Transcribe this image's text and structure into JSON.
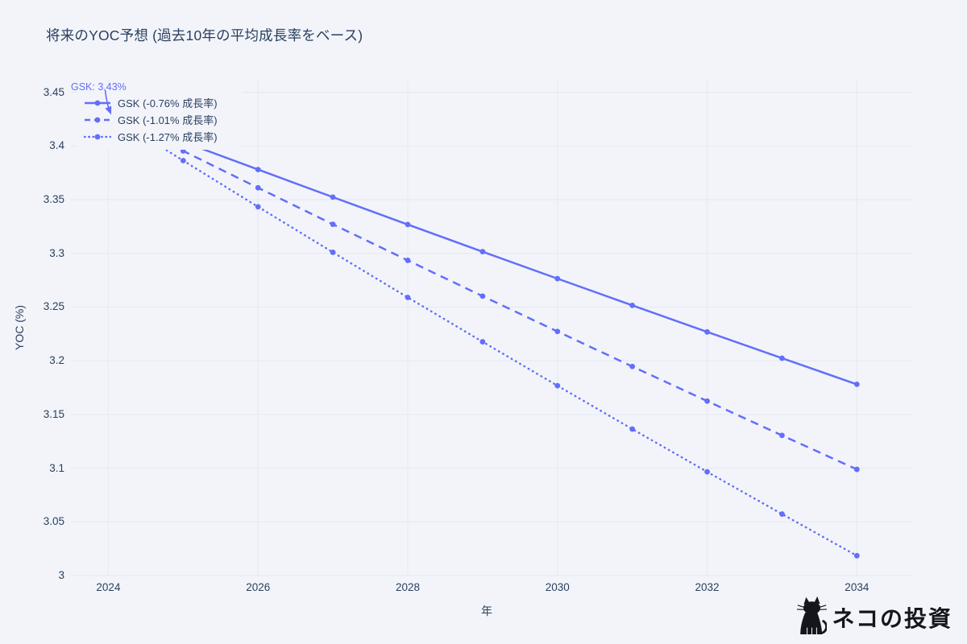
{
  "chart": {
    "title": "将来のYOC予想 (過去10年の平均成長率をベース)",
    "xlabel": "年",
    "ylabel": "YOC (%)",
    "annotation": {
      "text": "GSK: 3.43%"
    }
  },
  "watermark": {
    "text": "ネコの投資"
  },
  "colors": {
    "accent": "#636efa",
    "background": "#f2f4f9",
    "grid": "#e7ebf5",
    "text": "#2a3f5f",
    "watermark": "#15151d"
  },
  "chart_data": {
    "type": "line",
    "title": "将来のYOC予想 (過去10年の平均成長率をベース)",
    "xlabel": "年",
    "ylabel": "YOC (%)",
    "x": [
      2024,
      2025,
      2026,
      2027,
      2028,
      2029,
      2030,
      2031,
      2032,
      2033,
      2034
    ],
    "series": [
      {
        "name": "GSK (-0.76% 成長率)",
        "dash": "solid",
        "values": [
          3.43,
          3.4039,
          3.3781,
          3.3524,
          3.3269,
          3.3016,
          3.2765,
          3.2516,
          3.2269,
          3.2024,
          3.1781
        ]
      },
      {
        "name": "GSK (-1.01% 成長率)",
        "dash": "dash",
        "values": [
          3.43,
          3.3954,
          3.3611,
          3.3271,
          3.2935,
          3.2602,
          3.2273,
          3.1947,
          3.1625,
          3.1305,
          3.0989
        ]
      },
      {
        "name": "GSK (-1.27% 成長率)",
        "dash": "dot",
        "values": [
          3.43,
          3.3864,
          3.3434,
          3.301,
          3.259,
          3.2177,
          3.1768,
          3.1364,
          3.0966,
          3.0573,
          3.0185
        ]
      }
    ],
    "x_ticks": [
      2024,
      2026,
      2028,
      2030,
      2032,
      2034
    ],
    "y_ticks": [
      3,
      3.05,
      3.1,
      3.15,
      3.2,
      3.25,
      3.3,
      3.35,
      3.4,
      3.45
    ],
    "y_tick_labels": [
      "3",
      "3.05",
      "3.1",
      "3.15",
      "3.2",
      "3.25",
      "3.3",
      "3.35",
      "3.4",
      "3.45"
    ],
    "xlim": [
      2023.5,
      2034.75
    ],
    "ylim": [
      3.0,
      3.461
    ],
    "grid": true,
    "legend_position": "top-left",
    "annotation": {
      "text": "GSK: 3.43%",
      "x": 2024,
      "y": 3.43
    }
  }
}
